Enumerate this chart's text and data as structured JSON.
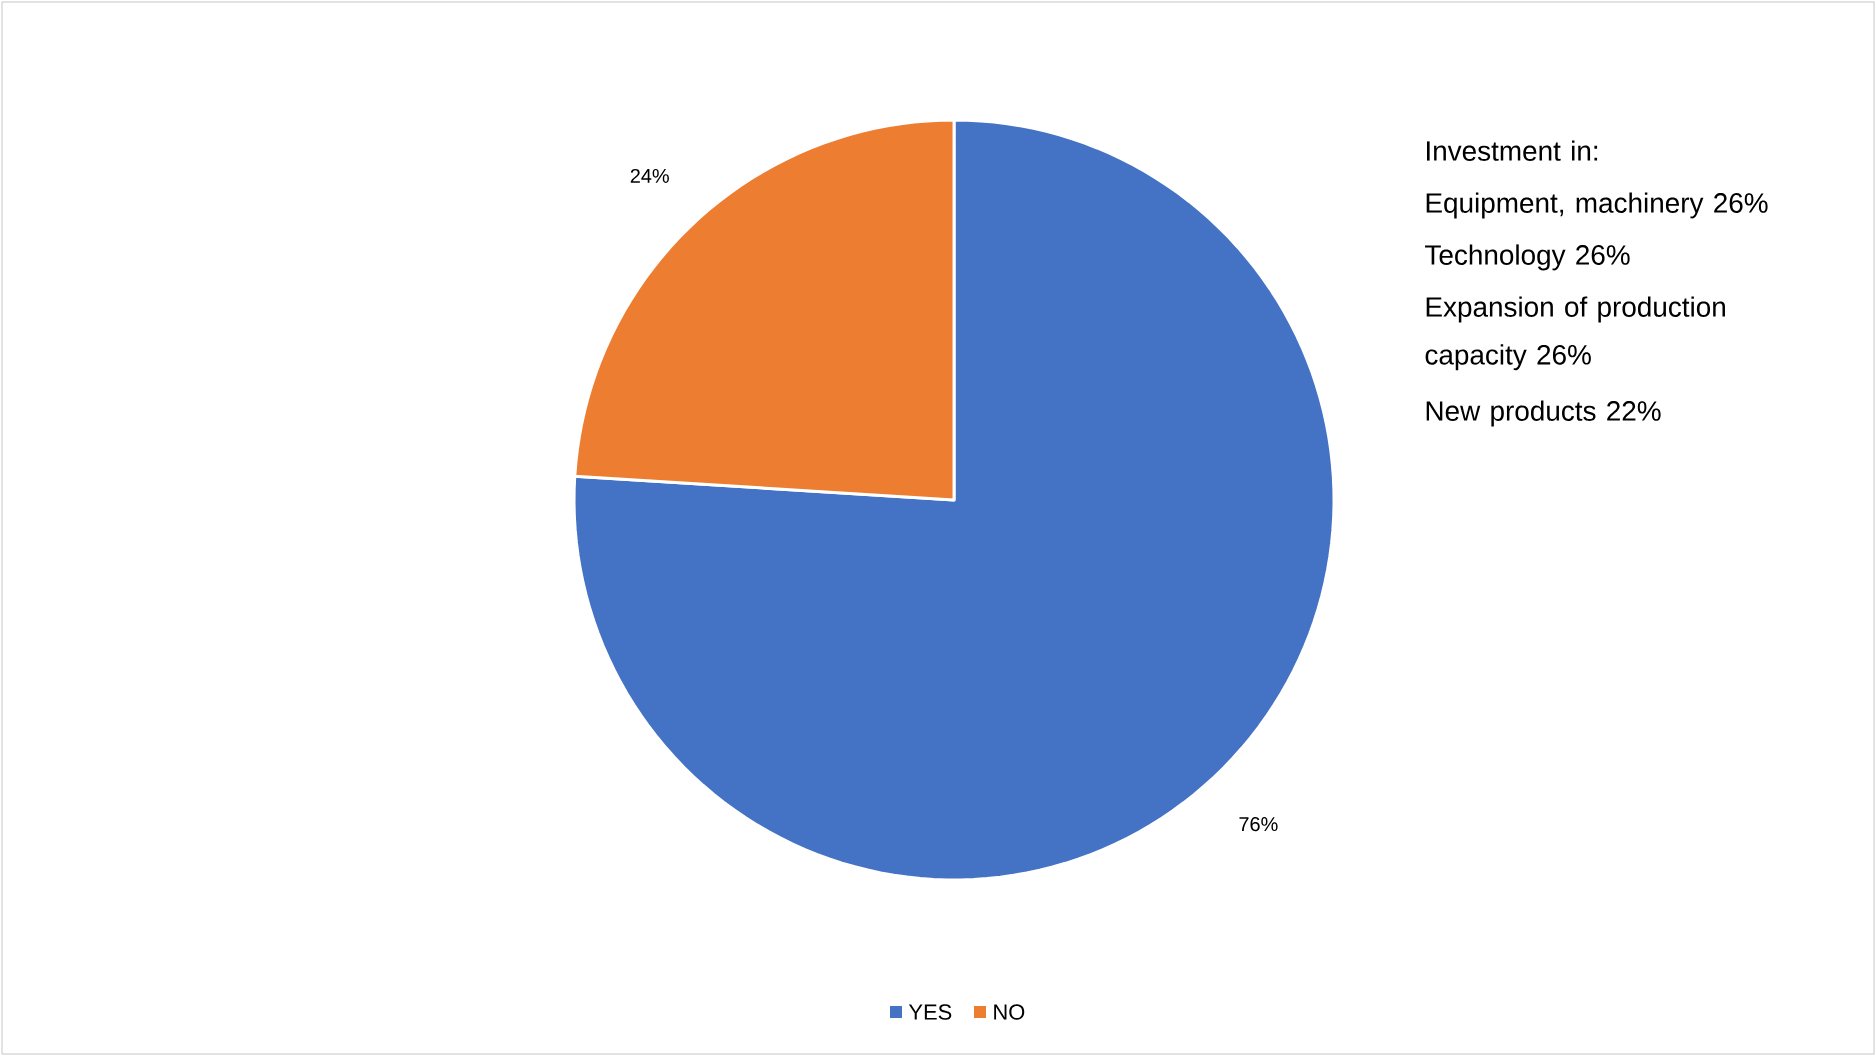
{
  "chart_data": {
    "type": "pie",
    "categories": [
      "YES",
      "NO"
    ],
    "values": [
      76,
      24
    ],
    "colors": [
      "#4472C4",
      "#ED7D31"
    ],
    "value_labels": [
      "76%",
      "24%"
    ],
    "legend": "bottom",
    "annotations": [
      "Investment in:",
      "Equipment, machinery  26%",
      "Technology   26%",
      "Expansion of production capacity  26%",
      "New products      22%"
    ]
  }
}
